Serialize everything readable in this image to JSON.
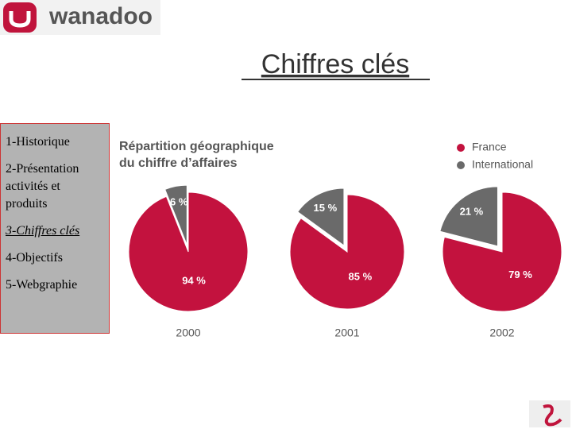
{
  "header": {
    "logo": "wanadoo"
  },
  "slide_title": "Chiffres clés",
  "menu": [
    "1-Historique",
    "2-Présentation activités et produits",
    "3-Chiffres clés",
    "4-Objectifs",
    "5-Webgraphie"
  ],
  "figure": {
    "title": [
      "Répartition géographique",
      "du chiffre d’affaires"
    ],
    "categories": [
      "France",
      "International"
    ],
    "colors": [
      "#c3123e",
      "#6a6a6a"
    ]
  },
  "chart_data": [
    {
      "type": "pie",
      "label": "2000",
      "values": [
        94,
        6
      ],
      "value_labels": [
        "94 %",
        "6 %"
      ]
    },
    {
      "type": "pie",
      "label": "2001",
      "values": [
        85,
        15
      ],
      "value_labels": [
        "85 %",
        "15 %"
      ]
    },
    {
      "type": "pie",
      "label": "2002",
      "values": [
        79,
        21
      ],
      "value_labels": [
        "79 %",
        "21 %"
      ]
    }
  ]
}
